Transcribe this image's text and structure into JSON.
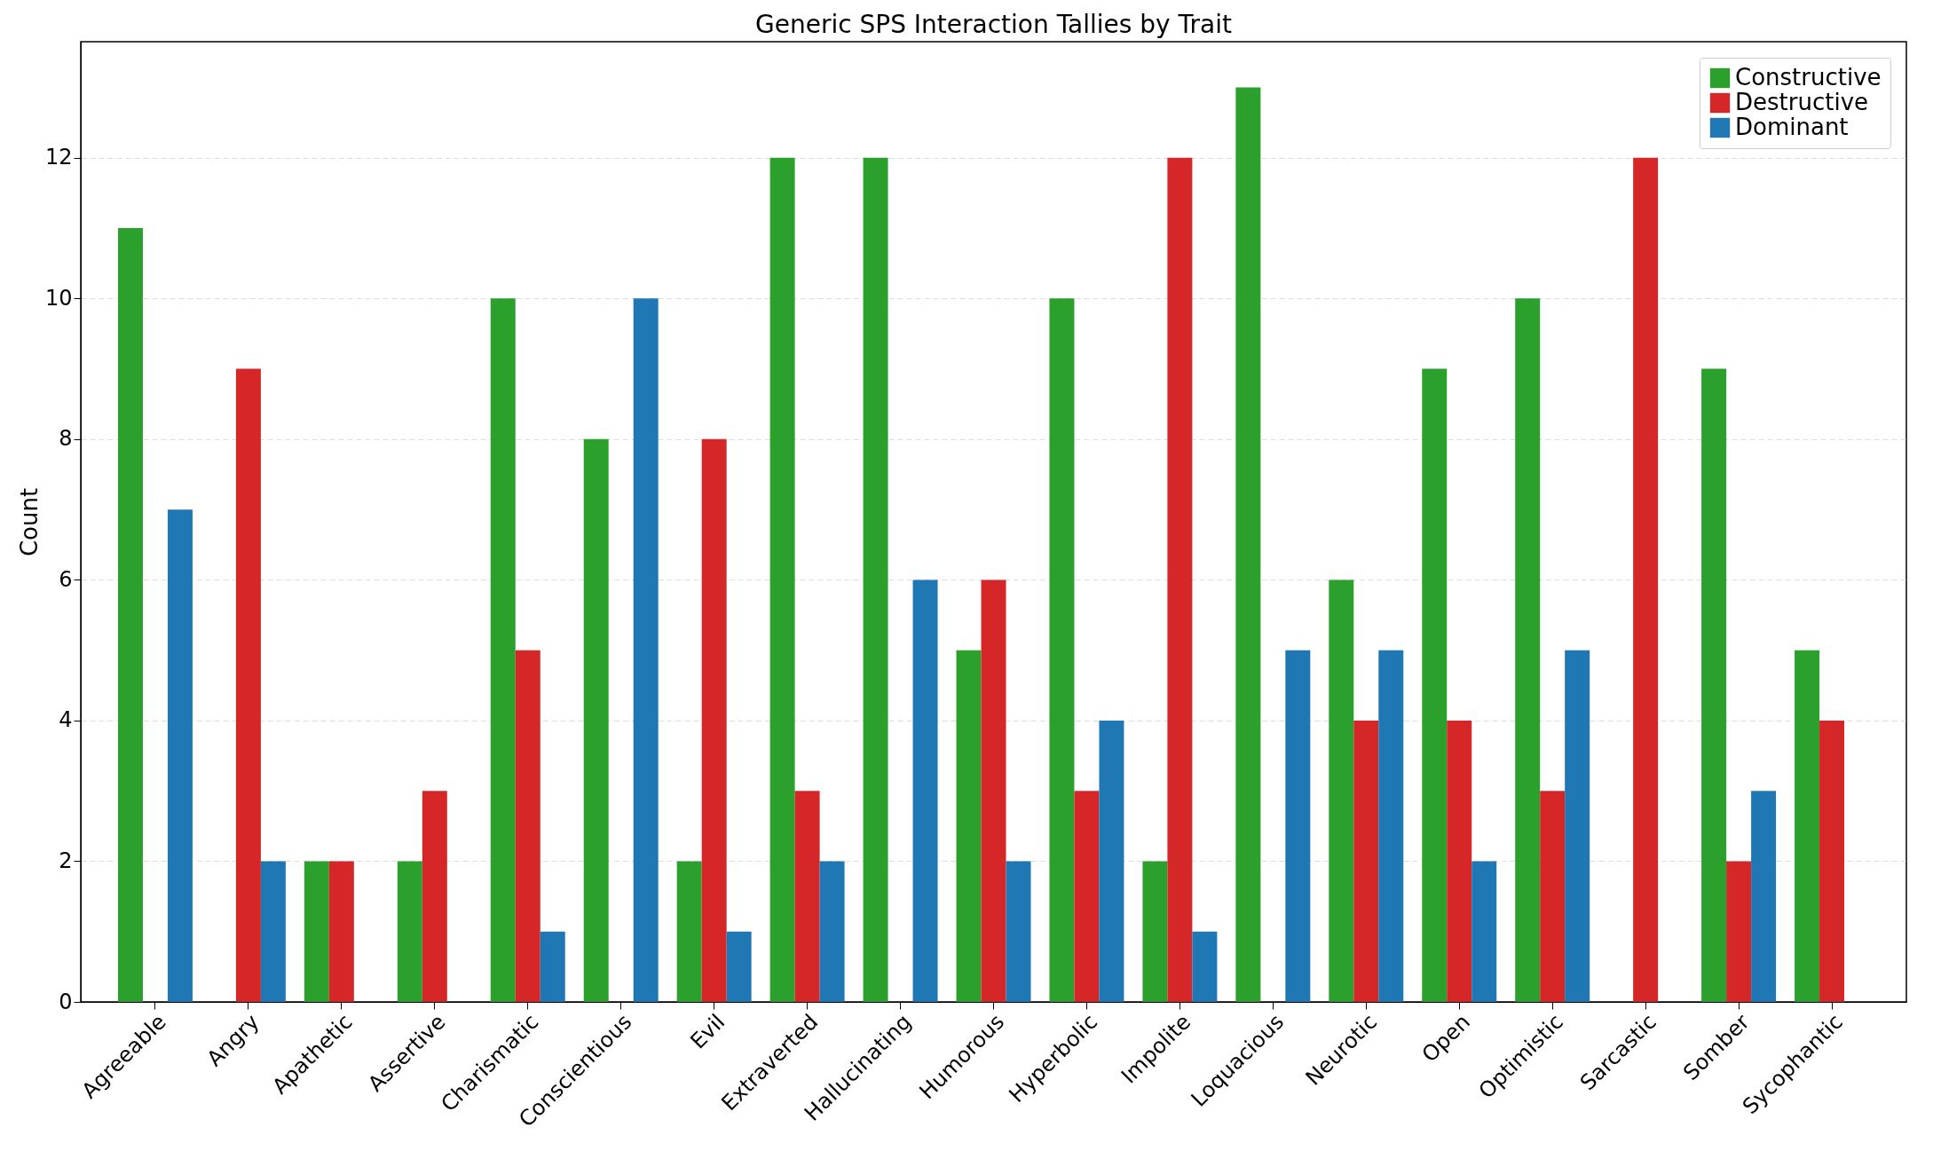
{
  "chart_data": {
    "type": "bar",
    "title": "Generic SPS Interaction Tallies by Trait",
    "ylabel": "Count",
    "categories": [
      "Agreeable",
      "Angry",
      "Apathetic",
      "Assertive",
      "Charismatic",
      "Conscientious",
      "Evil",
      "Extraverted",
      "Hallucinating",
      "Humorous",
      "Hyperbolic",
      "Impolite",
      "Loquacious",
      "Neurotic",
      "Open",
      "Optimistic",
      "Sarcastic",
      "Somber",
      "Sycophantic"
    ],
    "series": [
      {
        "name": "Constructive",
        "color": "#2ca02c",
        "values": [
          11,
          0,
          2,
          2,
          10,
          8,
          2,
          12,
          12,
          5,
          10,
          2,
          13,
          6,
          9,
          10,
          0,
          9,
          5
        ]
      },
      {
        "name": "Destructive",
        "color": "#d62728",
        "values": [
          0,
          9,
          2,
          3,
          5,
          0,
          8,
          3,
          0,
          6,
          3,
          12,
          0,
          4,
          4,
          3,
          12,
          2,
          4
        ]
      },
      {
        "name": "Dominant",
        "color": "#1f77b4",
        "values": [
          7,
          2,
          0,
          0,
          1,
          10,
          1,
          2,
          6,
          2,
          4,
          1,
          5,
          5,
          2,
          5,
          0,
          3,
          0
        ]
      }
    ],
    "ylim": [
      0,
      13.65
    ],
    "yticks": [
      0,
      2,
      4,
      6,
      8,
      10,
      12
    ],
    "grid": "y",
    "legend": "top right"
  }
}
